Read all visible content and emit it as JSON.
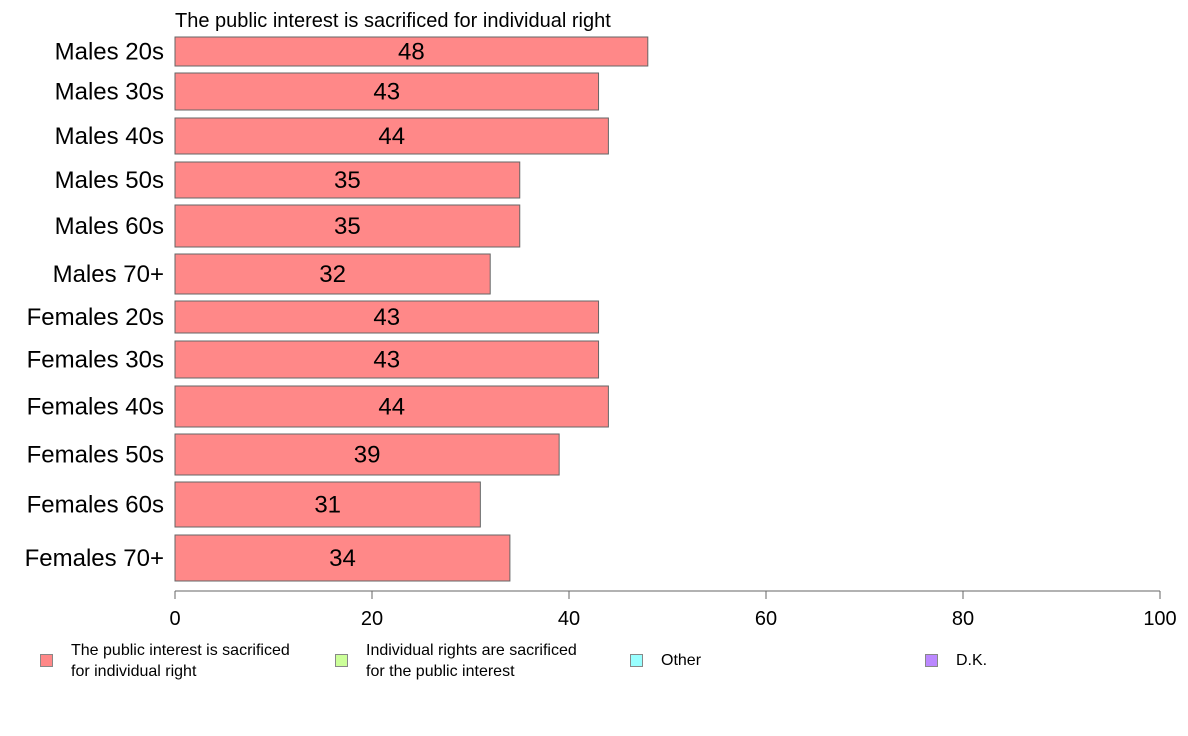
{
  "chart_data": {
    "type": "bar",
    "orientation": "horizontal",
    "title": "The public interest is sacrificed for individual right",
    "categories": [
      "Males 20s",
      "Males 30s",
      "Males 40s",
      "Males 50s",
      "Males 60s",
      "Males 70+",
      "Females 20s",
      "Females 30s",
      "Females 40s",
      "Females 50s",
      "Females 60s",
      "Females 70+"
    ],
    "series": [
      {
        "name": "The public interest is sacrificed for individual right",
        "values": [
          48,
          43,
          44,
          35,
          35,
          32,
          43,
          43,
          44,
          39,
          31,
          34
        ],
        "color": "#ff8888"
      }
    ],
    "xlim": [
      0,
      100
    ],
    "xticks": [
      "0",
      "20",
      "40",
      "60",
      "80",
      "100"
    ],
    "grid": false,
    "legend_position": "bottom"
  },
  "legend": [
    {
      "label": "The public interest is sacrificed\nfor individual right",
      "color": "#ff8888"
    },
    {
      "label": "Individual rights are sacrificed\nfor the public interest",
      "color": "#ccff99"
    },
    {
      "label": "Other",
      "color": "#99ffff"
    },
    {
      "label": "D.K.",
      "color": "#bb88ff"
    }
  ]
}
